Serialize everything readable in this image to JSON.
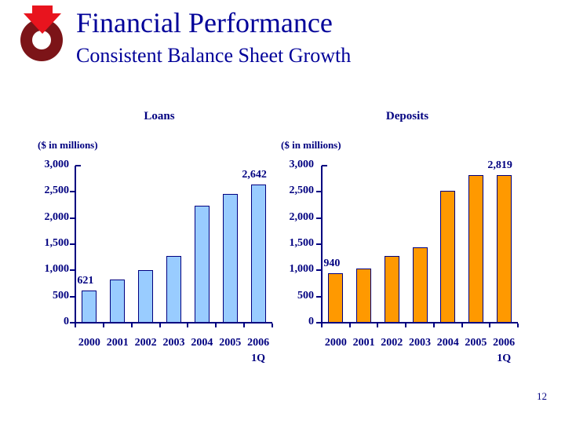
{
  "header": {
    "title": "Financial Performance",
    "subtitle": "Consistent Balance Sheet Growth"
  },
  "logo": {
    "ring_color": "#7C1418",
    "arrow_color": "#E8141E",
    "hole_color": "#FFFFFF"
  },
  "footer": {
    "page_number": "12"
  },
  "colors": {
    "title_text": "#000099",
    "chart_text": "#000080",
    "axis": "#000080",
    "bar_border": "#000080",
    "loans_bar_fill": "#99CCFF",
    "deposits_bar_fill": "#FF9900",
    "background": "#FFFFFF"
  },
  "chart_data": [
    {
      "type": "bar",
      "title": "Loans",
      "units_label": "($ in millions)",
      "categories": [
        "2000",
        "2001",
        "2002",
        "2003",
        "2004",
        "2005",
        "2006"
      ],
      "last_category_suffix": "1Q",
      "values": [
        621,
        820,
        1000,
        1280,
        2240,
        2460,
        2642
      ],
      "bar_labels": [
        "621",
        "",
        "",
        "",
        "",
        "",
        "2,642"
      ],
      "ylim": [
        0,
        3000
      ],
      "yticks": [
        0,
        500,
        1000,
        1500,
        2000,
        2500,
        3000
      ],
      "ytick_labels": [
        "0",
        "500",
        "1,000",
        "1,500",
        "2,000",
        "2,500",
        "3,000"
      ],
      "grid": false,
      "legend": "none",
      "bar_fill": "#99CCFF"
    },
    {
      "type": "bar",
      "title": "Deposits",
      "units_label": "($ in millions)",
      "categories": [
        "2000",
        "2001",
        "2002",
        "2003",
        "2004",
        "2005",
        "2006"
      ],
      "last_category_suffix": "1Q",
      "values": [
        940,
        1030,
        1280,
        1445,
        2520,
        2815,
        2819
      ],
      "bar_labels": [
        "940",
        "",
        "",
        "",
        "",
        "",
        "2,819"
      ],
      "ylim": [
        0,
        3000
      ],
      "yticks": [
        0,
        500,
        1000,
        1500,
        2000,
        2500,
        3000
      ],
      "ytick_labels": [
        "0",
        "500",
        "1,000",
        "1,500",
        "2,000",
        "2,500",
        "3,000"
      ],
      "grid": false,
      "legend": "none",
      "bar_fill": "#FF9900"
    }
  ]
}
